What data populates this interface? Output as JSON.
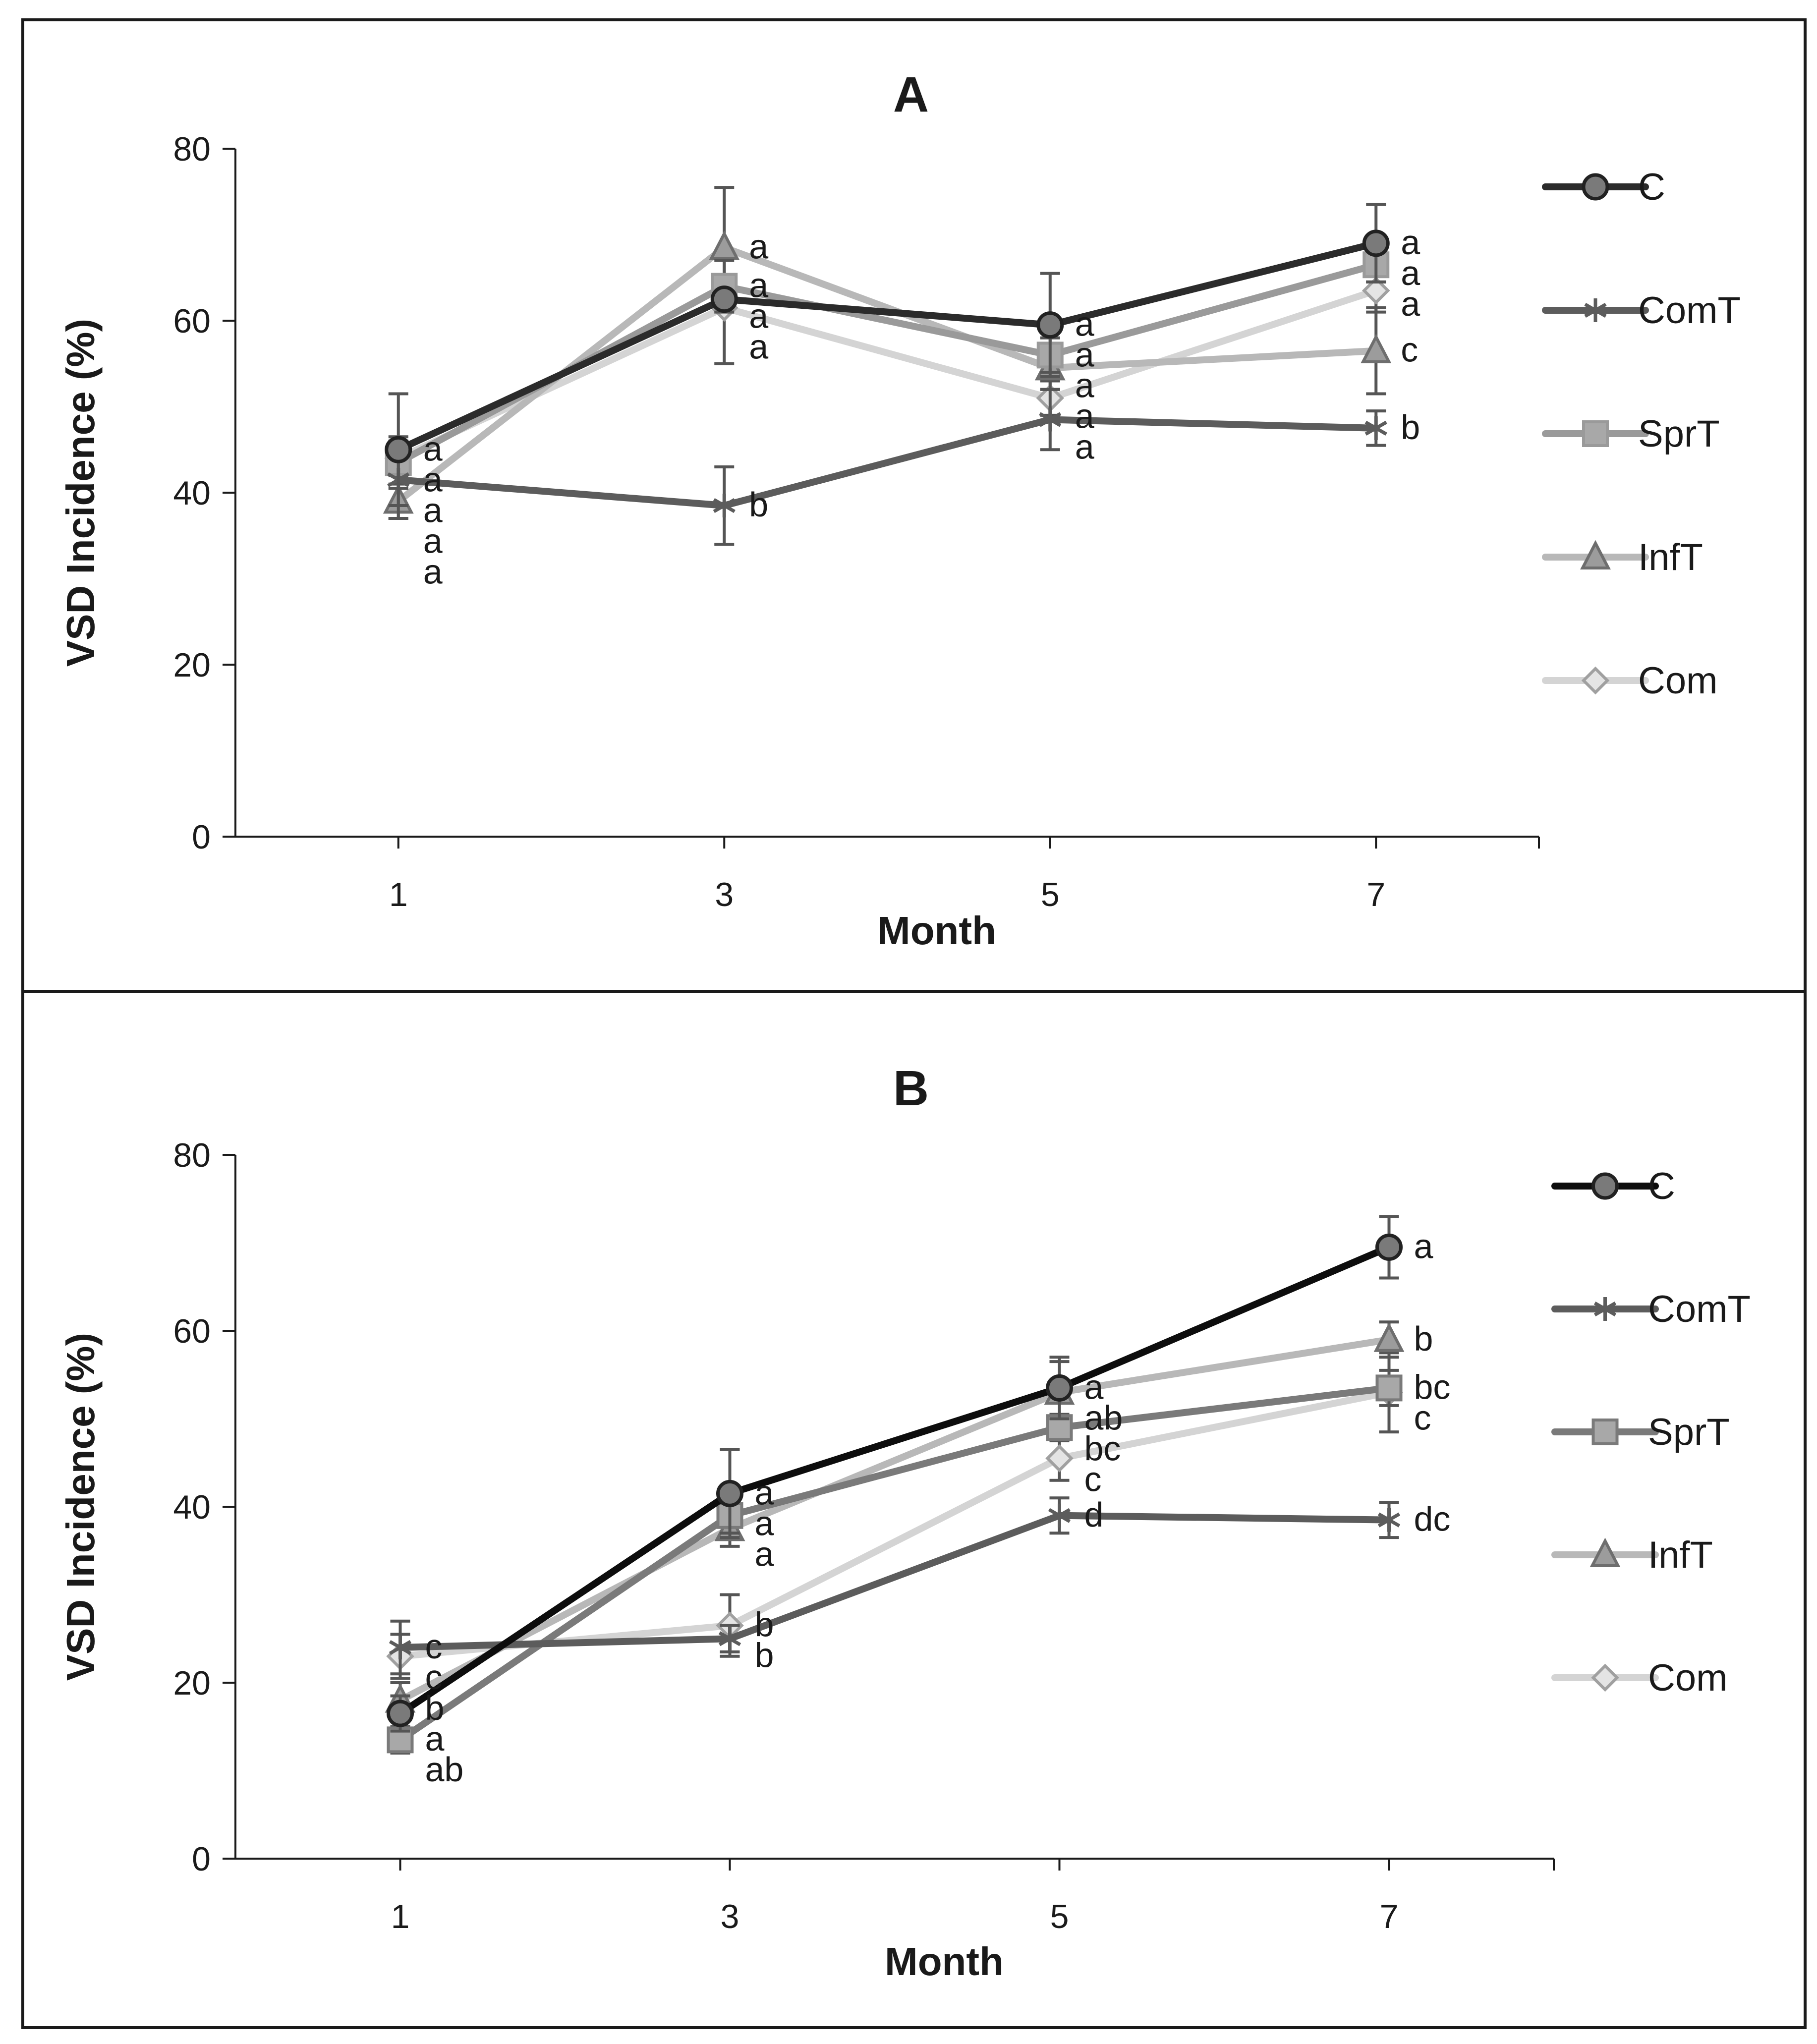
{
  "chart_data": [
    {
      "type": "line",
      "title": "A",
      "xlabel": "Month",
      "ylabel": "VSD Incidence (%)",
      "categories": [
        "1",
        "3",
        "5",
        "7"
      ],
      "x": [
        1,
        3,
        5,
        7
      ],
      "xlim": [
        0,
        8
      ],
      "ylim": [
        0,
        80
      ],
      "yticks": [
        0,
        20,
        40,
        60,
        80
      ],
      "grid": false,
      "legend_position": "right",
      "series": [
        {
          "name": "C",
          "marker": "circle",
          "color": "#2b2b2b",
          "fill": "#7a7a7a",
          "values": [
            45,
            62.5,
            59.5,
            69
          ],
          "error": [
            6.5,
            0,
            6,
            4.5
          ],
          "labels": [
            "a",
            "a",
            "a",
            "a"
          ]
        },
        {
          "name": "ComT",
          "marker": "asterisk",
          "color": "#5c5c5c",
          "fill": "#5c5c5c",
          "values": [
            41.5,
            38.5,
            48.5,
            47.5
          ],
          "error": [
            4.5,
            4.5,
            3.5,
            2
          ],
          "labels": [
            "a",
            "b",
            "a",
            "b"
          ]
        },
        {
          "name": "SprT",
          "marker": "square",
          "color": "#9a9a9a",
          "fill": "#a8a8a8",
          "values": [
            43.5,
            64,
            56,
            66.5
          ],
          "error": [
            3,
            3,
            2,
            2
          ],
          "labels": [
            "a",
            "a",
            "a",
            "a"
          ]
        },
        {
          "name": "InfT",
          "marker": "triangle",
          "color": "#b8b8b8",
          "fill": "#9c9c9c",
          "values": [
            39,
            68.5,
            54.5,
            56.5
          ],
          "error": [
            2,
            7,
            2.5,
            5
          ],
          "labels": [
            "a",
            "a",
            "a",
            "c"
          ]
        },
        {
          "name": "Com",
          "marker": "diamond",
          "color": "#d4d4d4",
          "fill": "#e4e4e4",
          "values": [
            44,
            61.5,
            51,
            63.5
          ],
          "error": [
            2,
            6.5,
            2,
            2.5
          ],
          "labels": [
            "a",
            "a",
            "a",
            "a"
          ]
        }
      ]
    },
    {
      "type": "line",
      "title": "B",
      "xlabel": "Month",
      "ylabel": "VSD Incidence (%)",
      "categories": [
        "1",
        "3",
        "5",
        "7"
      ],
      "x": [
        1,
        3,
        5,
        7
      ],
      "xlim": [
        0,
        8
      ],
      "ylim": [
        0,
        80
      ],
      "yticks": [
        0,
        20,
        40,
        60,
        80
      ],
      "grid": false,
      "legend_position": "right",
      "series": [
        {
          "name": "C",
          "marker": "circle",
          "color": "#0d0d0d",
          "fill": "#7a7a7a",
          "values": [
            16.5,
            41.5,
            53.5,
            69.5
          ],
          "error": [
            2,
            5,
            3.5,
            3.5
          ],
          "labels": [
            "a",
            "a",
            "a",
            "a"
          ]
        },
        {
          "name": "ComT",
          "marker": "asterisk",
          "color": "#5c5c5c",
          "fill": "#5c5c5c",
          "values": [
            24,
            25,
            39,
            38.5
          ],
          "error": [
            3,
            1.5,
            2,
            2
          ],
          "labels": [
            "c",
            "b",
            "d",
            "dc"
          ]
        },
        {
          "name": "SprT",
          "marker": "square",
          "color": "#7a7a7a",
          "fill": "#a8a8a8",
          "values": [
            13.5,
            39,
            49,
            53.5
          ],
          "error": [
            1.5,
            2,
            1.5,
            2
          ],
          "labels": [
            "ab",
            "a",
            "bc",
            "bc"
          ]
        },
        {
          "name": "InfT",
          "marker": "triangle",
          "color": "#b8b8b8",
          "fill": "#9c9c9c",
          "values": [
            18,
            37.5,
            53,
            59
          ],
          "error": [
            2,
            2,
            3.5,
            2
          ],
          "labels": [
            "b",
            "a",
            "ab",
            "b"
          ]
        },
        {
          "name": "Com",
          "marker": "diamond",
          "color": "#d4d4d4",
          "fill": "#e4e4e4",
          "values": [
            23,
            26.5,
            45.5,
            53
          ],
          "error": [
            2.5,
            3.5,
            2.5,
            4.5
          ],
          "labels": [
            "c",
            "b",
            "c",
            "c"
          ]
        }
      ]
    }
  ]
}
